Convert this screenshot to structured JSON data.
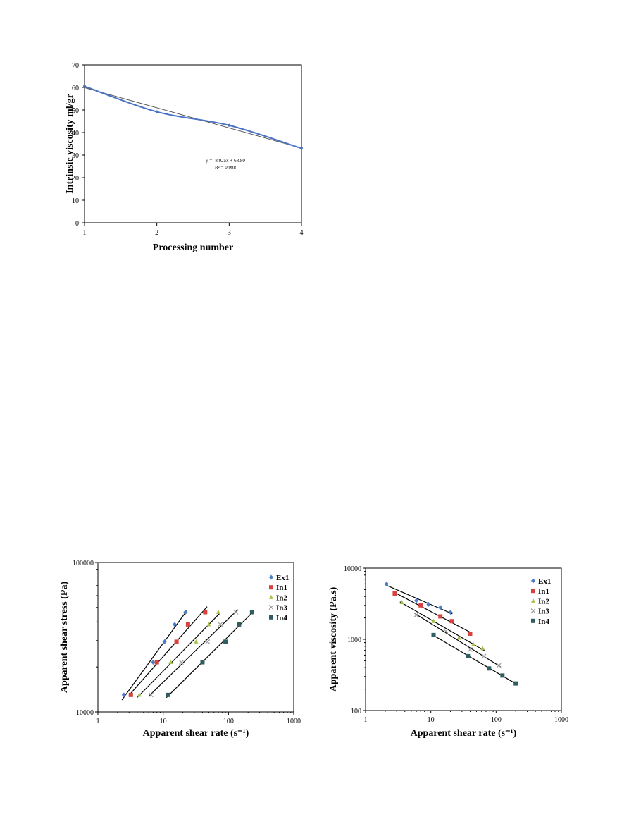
{
  "chart_data": [
    {
      "type": "line",
      "xlabel": "Processing number",
      "ylabel": "Intrinsic viscosity ml/gr",
      "xlim": [
        1,
        4
      ],
      "ylim": [
        0,
        70
      ],
      "xticks": [
        "1",
        "2",
        "3",
        "4"
      ],
      "yticks": [
        "0",
        "10",
        "20",
        "30",
        "40",
        "50",
        "60",
        "70"
      ],
      "series": [
        {
          "values_x": [
            1,
            2,
            3,
            4
          ],
          "values_y": [
            60.5,
            49.2,
            43.2,
            33.0
          ],
          "color": "#4a72c4"
        }
      ],
      "trendline": {
        "x": [
          1,
          4
        ],
        "y": [
          59.9,
          33.1
        ],
        "color": "#555555"
      },
      "annotation": [
        "y = -8.925x + 68.80",
        "R² = 0.988"
      ],
      "grid": false
    },
    {
      "type": "scatter",
      "xlabel": "Apparent shear rate (s⁻¹)",
      "ylabel": "Apparent shear stress (Pa)",
      "xscale": "log",
      "yscale": "log",
      "xlim": [
        1,
        1000
      ],
      "ylim": [
        10000,
        100000
      ],
      "xticks": [
        "1",
        "10",
        "100",
        "1000"
      ],
      "yticks": [
        "10000",
        "100000"
      ],
      "legend_position": "top-right",
      "series": [
        {
          "name": "Ex1",
          "marker": "diamond",
          "color": "#4a7ec8",
          "x": [
            2.5,
            7.0,
            10.5,
            15.0,
            22.0
          ],
          "y": [
            13000,
            21500,
            29500,
            38500,
            46500
          ]
        },
        {
          "name": "In1",
          "marker": "square",
          "color": "#d9413c",
          "x": [
            3.2,
            8.0,
            16.0,
            24.0,
            44.0
          ],
          "y": [
            13000,
            21500,
            29500,
            38500,
            46500
          ]
        },
        {
          "name": "In2",
          "marker": "triangle",
          "color": "#a3c24a",
          "x": [
            4.3,
            13.0,
            32.0,
            50.0,
            70.0
          ],
          "y": [
            13000,
            21500,
            29500,
            38500,
            46500
          ]
        },
        {
          "name": "In3",
          "marker": "cross",
          "color": "#9a9a9a",
          "x": [
            6.5,
            19.0,
            48.0,
            75.0,
            130.0
          ],
          "y": [
            13000,
            21500,
            29500,
            38500,
            46500
          ]
        },
        {
          "name": "In4",
          "marker": "square",
          "color": "#2f5d62",
          "x": [
            12.0,
            40.0,
            90.0,
            145.0,
            230.0
          ],
          "y": [
            13000,
            21500,
            29500,
            38500,
            46500
          ]
        }
      ],
      "grid": false
    },
    {
      "type": "scatter",
      "xlabel": "Apparent shear rate (s⁻¹)",
      "ylabel": "Apparent viscosity (Pa.s)",
      "xscale": "log",
      "yscale": "log",
      "xlim": [
        1,
        1000
      ],
      "ylim": [
        100,
        10000
      ],
      "xticks": [
        "1",
        "10",
        "100",
        "1000"
      ],
      "yticks": [
        "100",
        "1000",
        "10000"
      ],
      "legend_position": "top-right",
      "series": [
        {
          "name": "Ex1",
          "marker": "diamond",
          "color": "#4a7ec8",
          "x": [
            2.1,
            6.0,
            9.2,
            14.0,
            20.0
          ],
          "y": [
            6000,
            3500,
            3100,
            2800,
            2400
          ]
        },
        {
          "name": "In1",
          "marker": "square",
          "color": "#d9413c",
          "x": [
            2.8,
            7.0,
            14.0,
            21.0,
            40.0
          ],
          "y": [
            4400,
            3000,
            2100,
            1800,
            1200
          ]
        },
        {
          "name": "In2",
          "marker": "triangle",
          "color": "#a3c24a",
          "x": [
            3.6,
            11.0,
            27.0,
            45.0,
            62.0
          ],
          "y": [
            3300,
            1800,
            1050,
            850,
            750
          ]
        },
        {
          "name": "In3",
          "marker": "cross",
          "color": "#9a9a9a",
          "x": [
            6.0,
            17.0,
            40.0,
            65.0,
            110.0
          ],
          "y": [
            2200,
            1300,
            720,
            580,
            430
          ]
        },
        {
          "name": "In4",
          "marker": "square",
          "color": "#2f5d62",
          "x": [
            11.0,
            37.0,
            78.0,
            125.0,
            200.0
          ],
          "y": [
            1150,
            580,
            390,
            310,
            240
          ]
        }
      ],
      "grid": false
    }
  ]
}
